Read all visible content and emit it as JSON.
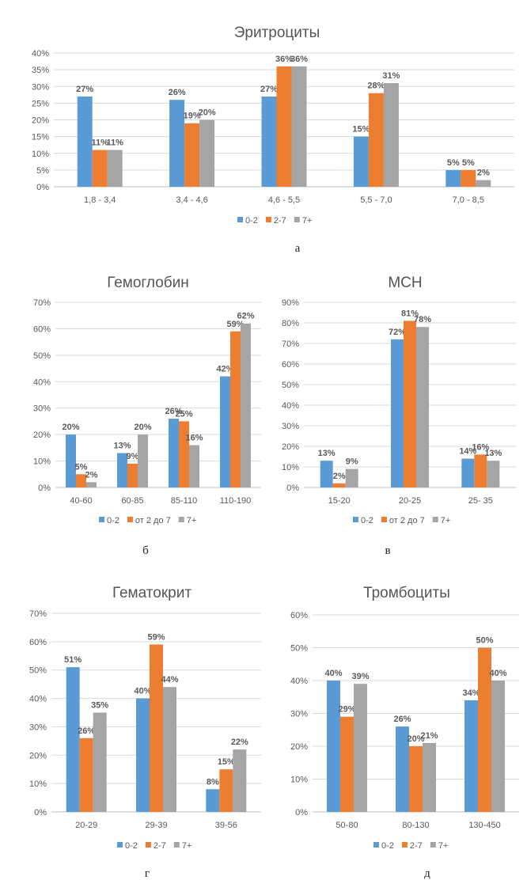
{
  "colors": {
    "series_0": "#5b9bd5",
    "series_1": "#ed7d31",
    "series_2": "#a5a5a5",
    "grid": "#d9d9d9",
    "axis": "#bfbfbf"
  },
  "chart_data": [
    {
      "type": "bar",
      "title": "Эритроциты",
      "caption": "а",
      "categories": [
        "1,8 - 3,4",
        "3,4 - 4,6",
        "4,6 - 5,5",
        "5,5 - 7,0",
        "7,0 - 8,5"
      ],
      "series": [
        {
          "name": "0-2",
          "values": [
            27,
            26,
            27,
            15,
            5
          ]
        },
        {
          "name": "2-7",
          "values": [
            11,
            19,
            36,
            28,
            5
          ]
        },
        {
          "name": "7+",
          "values": [
            11,
            20,
            36,
            31,
            2
          ]
        }
      ],
      "ylim": [
        0,
        40
      ],
      "ytick_step": 5,
      "yticks": [
        "0%",
        "5%",
        "10%",
        "15%",
        "20%",
        "25%",
        "30%",
        "35%",
        "40%"
      ],
      "grid": true,
      "legend": "bottom"
    },
    {
      "type": "bar",
      "title": "Гемоглобин",
      "caption": "б",
      "categories": [
        "40-60",
        "60-85",
        "85-110",
        "110-190"
      ],
      "series": [
        {
          "name": "0-2",
          "values": [
            20,
            13,
            26,
            42
          ]
        },
        {
          "name": "от 2 до 7",
          "values": [
            5,
            9,
            25,
            59
          ]
        },
        {
          "name": "7+",
          "values": [
            2,
            20,
            16,
            62
          ]
        }
      ],
      "ylim": [
        0,
        70
      ],
      "ytick_step": 10,
      "yticks": [
        "0%",
        "10%",
        "20%",
        "30%",
        "40%",
        "50%",
        "60%",
        "70%"
      ],
      "grid": true,
      "legend": "bottom"
    },
    {
      "type": "bar",
      "title": "MCH",
      "caption": "в",
      "categories": [
        "15-20",
        "20-25",
        "25- 35"
      ],
      "series": [
        {
          "name": "0-2",
          "values": [
            13,
            72,
            14
          ]
        },
        {
          "name": "от 2 до 7",
          "values": [
            2,
            81,
            16
          ]
        },
        {
          "name": "7+",
          "values": [
            9,
            78,
            13
          ]
        }
      ],
      "ylim": [
        0,
        90
      ],
      "ytick_step": 10,
      "yticks": [
        "0%",
        "10%",
        "20%",
        "30%",
        "40%",
        "50%",
        "60%",
        "70%",
        "80%",
        "90%"
      ],
      "grid": true,
      "legend": "bottom"
    },
    {
      "type": "bar",
      "title": "Гематокрит",
      "caption": "г",
      "categories": [
        "20-29",
        "29-39",
        "39-56"
      ],
      "series": [
        {
          "name": "0-2",
          "values": [
            51,
            40,
            8
          ]
        },
        {
          "name": "2-7",
          "values": [
            26,
            59,
            15
          ]
        },
        {
          "name": "7+",
          "values": [
            35,
            44,
            22
          ]
        }
      ],
      "ylim": [
        0,
        70
      ],
      "ytick_step": 10,
      "yticks": [
        "0%",
        "10%",
        "20%",
        "30%",
        "40%",
        "50%",
        "60%",
        "70%"
      ],
      "grid": true,
      "legend": "bottom"
    },
    {
      "type": "bar",
      "title": "Тромбоциты",
      "caption": "д",
      "categories": [
        "50-80",
        "80-130",
        "130-450"
      ],
      "series": [
        {
          "name": "0-2",
          "values": [
            40,
            26,
            34
          ]
        },
        {
          "name": "2-7",
          "values": [
            29,
            20,
            50
          ]
        },
        {
          "name": "7+",
          "values": [
            39,
            21,
            40
          ]
        }
      ],
      "ylim": [
        0,
        60
      ],
      "ytick_step": 10,
      "yticks": [
        "0%",
        "10%",
        "20%",
        "30%",
        "40%",
        "50%",
        "60%"
      ],
      "grid": true,
      "legend": "bottom"
    }
  ]
}
